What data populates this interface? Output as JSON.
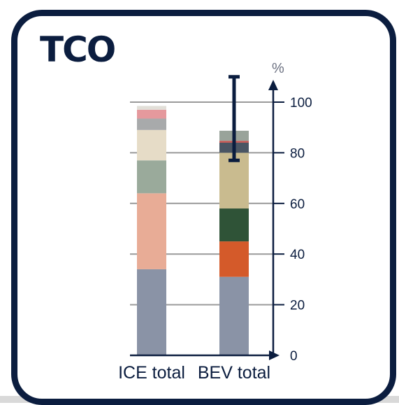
{
  "title": "TCO",
  "chart_data": {
    "type": "bar",
    "stacked": true,
    "title": "TCO",
    "ylabel": "%",
    "ylim": [
      0,
      100
    ],
    "yticks": [
      0,
      20,
      40,
      60,
      80,
      100
    ],
    "grid": true,
    "legend": "none",
    "categories": [
      "ICE total",
      "BEV total"
    ],
    "series": [
      {
        "color": "#8a93a6",
        "values": [
          34,
          31
        ]
      },
      {
        "color": "#e8ac96",
        "values": [
          30,
          0
        ]
      },
      {
        "color": "#d45a2a",
        "values": [
          0,
          14
        ]
      },
      {
        "color": "#2f5337",
        "values": [
          0,
          13
        ]
      },
      {
        "color": "#9aaa9b",
        "values": [
          13,
          0
        ]
      },
      {
        "color": "#e6dcc7",
        "values": [
          12,
          0
        ]
      },
      {
        "color": "#c9bb8f",
        "values": [
          0,
          22
        ]
      },
      {
        "color": "#4a5563",
        "values": [
          0,
          4
        ]
      },
      {
        "color": "#c75450",
        "values": [
          0,
          0.7
        ]
      },
      {
        "color": "#a8aaab",
        "values": [
          4.5,
          0
        ]
      },
      {
        "color": "#e5999d",
        "values": [
          3.5,
          0
        ]
      },
      {
        "color": "#e2dfd8",
        "values": [
          1.5,
          0
        ]
      },
      {
        "color": "#99a39a",
        "values": [
          0,
          4
        ]
      }
    ],
    "error_bar": {
      "category": "BEV total",
      "low": 77,
      "high": 110
    }
  }
}
